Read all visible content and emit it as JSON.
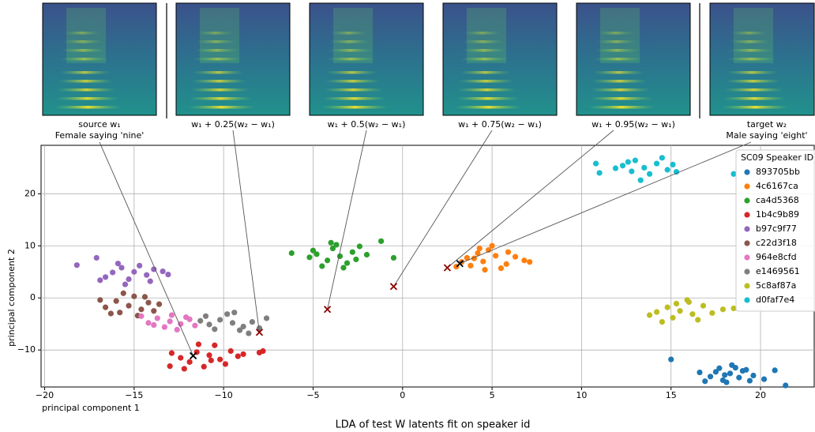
{
  "chart_data": {
    "type": "scatter",
    "x_label": "LDA of test W latents fit on speaker id",
    "y_label": "principal component 2",
    "x_corner_label": "principal component 1",
    "xlim": [
      -20.2,
      23.0
    ],
    "ylim": [
      -17.1,
      29.3
    ],
    "xticks": [
      {
        "value": -20,
        "label": "−20"
      },
      {
        "value": -15,
        "label": "−15"
      },
      {
        "value": -10,
        "label": "−10"
      },
      {
        "value": -5,
        "label": "−5"
      },
      0,
      5,
      10,
      15,
      20
    ],
    "yticks": [
      {
        "value": -10,
        "label": "−10"
      },
      0,
      10,
      20
    ],
    "grid": true,
    "legend_title": "SC09 Speaker ID",
    "legend_position": "upper right",
    "panels": [
      {
        "line1": "source w₁",
        "line2": "Female saying 'nine'"
      },
      {
        "line1": "w₁ + 0.25(w₂ − w₁)"
      },
      {
        "line1": "w₁ + 0.5(w₂ − w₁)"
      },
      {
        "line1": "w₁ + 0.75(w₂ − w₁)"
      },
      {
        "line1": "w₁ + 0.95(w₂ − w₁)"
      },
      {
        "line1": "target w₂",
        "line2": "Male saying 'eight'"
      }
    ],
    "interpolation_points": {
      "x": [
        -11.7,
        -8.0,
        -4.2,
        -0.5,
        2.5,
        3.2
      ],
      "y": [
        -11.1,
        -6.6,
        -2.2,
        2.2,
        5.8,
        6.6
      ],
      "colors": [
        "#000000",
        "#8b0000",
        "#8b0000",
        "#8b0000",
        "#8b0000",
        "#000000"
      ]
    },
    "series": [
      {
        "name": "893705bb",
        "color": "#1f77b4",
        "x": [
          18.3,
          17.5,
          18.8,
          19.2,
          17.9,
          18.6,
          19.6,
          17.2,
          18.1,
          19.0,
          16.6,
          20.2,
          18.4,
          17.7,
          15.0,
          21.4,
          20.8,
          16.9,
          19.4,
          18.0
        ],
        "y": [
          -14.5,
          -14.2,
          -15.3,
          -13.8,
          -15.8,
          -13.4,
          -14.9,
          -15.1,
          -16.2,
          -14.0,
          -14.3,
          -15.6,
          -12.9,
          -13.5,
          -11.8,
          -16.8,
          -13.9,
          -16.0,
          -15.9,
          -14.8
        ]
      },
      {
        "name": "4c6167ca",
        "color": "#ff7f0e",
        "x": [
          4.5,
          3.8,
          5.2,
          4.0,
          5.8,
          6.3,
          3.3,
          4.8,
          5.5,
          4.2,
          6.8,
          3.0,
          5.0,
          4.6,
          5.9,
          3.6,
          7.1,
          4.3
        ],
        "y": [
          7.0,
          6.2,
          8.1,
          7.6,
          6.5,
          7.9,
          6.9,
          9.2,
          5.7,
          8.6,
          7.2,
          6.0,
          10.0,
          5.4,
          8.8,
          7.7,
          6.9,
          9.5
        ]
      },
      {
        "name": "ca4d5368",
        "color": "#2ca02c",
        "x": [
          -3.5,
          -4.2,
          -2.8,
          -3.9,
          -4.8,
          -3.1,
          -2.4,
          -5.2,
          -3.7,
          -4.5,
          -2.0,
          -6.2,
          -3.3,
          -1.2,
          -0.5,
          -4.0,
          -2.6,
          -5.0
        ],
        "y": [
          8.0,
          7.2,
          8.8,
          9.5,
          8.4,
          6.7,
          9.9,
          7.8,
          10.2,
          6.1,
          8.3,
          8.6,
          5.8,
          10.9,
          7.7,
          10.6,
          7.4,
          9.1
        ]
      },
      {
        "name": "1b4c9b89",
        "color": "#d62728",
        "x": [
          -10.8,
          -11.5,
          -10.2,
          -11.9,
          -9.6,
          -10.5,
          -12.4,
          -11.1,
          -9.9,
          -9.2,
          -12.9,
          -10.7,
          -11.4,
          -8.9,
          -13.0,
          -8.0,
          -7.8,
          -12.2
        ],
        "y": [
          -11.0,
          -10.4,
          -11.8,
          -12.3,
          -10.2,
          -9.1,
          -11.5,
          -13.2,
          -12.7,
          -11.2,
          -10.6,
          -12.0,
          -8.9,
          -10.8,
          -13.1,
          -10.5,
          -10.2,
          -13.6
        ]
      },
      {
        "name": "b97c9f77",
        "color": "#9467bd",
        "x": [
          -15.0,
          -15.7,
          -14.3,
          -16.2,
          -14.7,
          -15.3,
          -13.9,
          -16.6,
          -14.1,
          -15.9,
          -13.4,
          -16.9,
          -15.5,
          -18.2,
          -17.1,
          -13.1
        ],
        "y": [
          5.0,
          5.8,
          4.4,
          4.9,
          6.2,
          3.6,
          5.5,
          4.0,
          3.2,
          6.6,
          5.1,
          3.4,
          2.6,
          6.3,
          7.7,
          4.5
        ]
      },
      {
        "name": "c22d3f18",
        "color": "#8c564b",
        "x": [
          -15.3,
          -16.0,
          -14.6,
          -15.8,
          -14.2,
          -16.6,
          -15.0,
          -13.9,
          -16.9,
          -14.8,
          -15.6,
          -13.6,
          -16.3,
          -14.4
        ],
        "y": [
          -1.5,
          -0.6,
          -2.2,
          -2.8,
          -0.9,
          -1.8,
          0.3,
          -2.5,
          -0.4,
          -3.4,
          0.9,
          -1.2,
          -3.0,
          0.2
        ]
      },
      {
        "name": "964e8cfd",
        "color": "#e377c2",
        "x": [
          -13.0,
          -13.7,
          -12.4,
          -12.9,
          -14.2,
          -11.9,
          -13.3,
          -12.1,
          -14.6,
          -11.6,
          -12.6,
          -13.9
        ],
        "y": [
          -4.5,
          -3.9,
          -5.0,
          -3.3,
          -4.8,
          -4.1,
          -5.6,
          -3.7,
          -3.5,
          -5.3,
          -6.1,
          -5.2
        ]
      },
      {
        "name": "e1469561",
        "color": "#7f7f7f",
        "x": [
          -9.5,
          -10.2,
          -8.9,
          -9.8,
          -10.8,
          -8.4,
          -9.1,
          -11.3,
          -8.0,
          -10.5,
          -9.4,
          -7.6,
          -11.0,
          -8.6
        ],
        "y": [
          -4.8,
          -4.2,
          -5.5,
          -3.1,
          -5.1,
          -4.6,
          -6.2,
          -4.4,
          -5.8,
          -6.0,
          -2.8,
          -3.9,
          -3.5,
          -6.8
        ]
      },
      {
        "name": "5c8af87a",
        "color": "#bcbd22",
        "x": [
          15.5,
          14.8,
          16.2,
          15.1,
          16.8,
          14.2,
          15.9,
          17.3,
          13.8,
          16.5,
          15.3,
          14.5,
          17.9,
          18.5,
          16.0
        ],
        "y": [
          -2.5,
          -1.8,
          -3.1,
          -3.8,
          -1.5,
          -2.7,
          -0.4,
          -2.9,
          -3.3,
          -4.2,
          -1.1,
          -4.6,
          -2.2,
          -2.0,
          -0.8
        ]
      },
      {
        "name": "d0faf7e4",
        "color": "#17becf",
        "x": [
          13.5,
          12.8,
          14.2,
          13.0,
          14.8,
          12.3,
          13.8,
          11.9,
          14.5,
          13.3,
          15.3,
          12.6,
          10.8,
          11.0,
          18.5,
          15.1
        ],
        "y": [
          25.0,
          24.3,
          25.8,
          26.4,
          24.6,
          25.4,
          23.8,
          24.9,
          26.9,
          22.6,
          24.2,
          26.1,
          25.8,
          24.0,
          23.8,
          25.6
        ]
      }
    ]
  }
}
